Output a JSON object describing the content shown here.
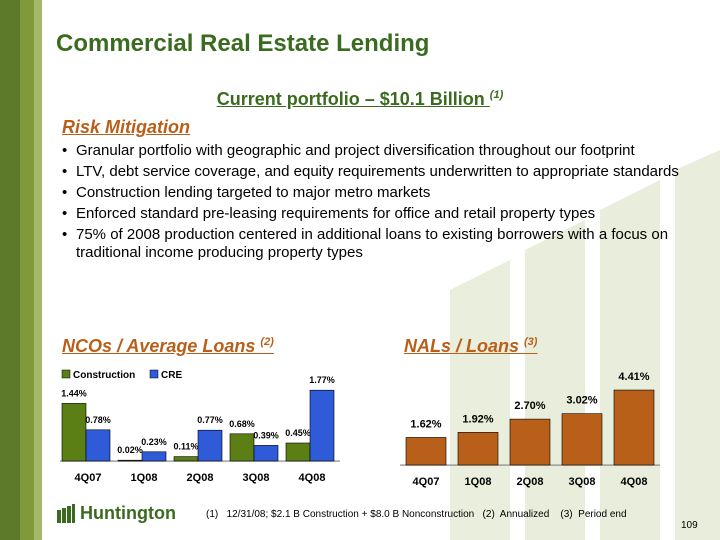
{
  "title": "Commercial Real Estate Lending",
  "subtitle": {
    "text": "Current portfolio – $10.1 Billion ",
    "note": "(1)"
  },
  "risk": {
    "heading": "Risk Mitigation",
    "bullets": [
      "Granular portfolio with geographic and project diversification throughout our footprint",
      "LTV, debt service coverage, and equity requirements underwritten to appropriate standards",
      "Construction lending targeted to major metro markets",
      "Enforced standard pre-leasing requirements for office and retail property types",
      "75% of 2008 production centered in additional loans to existing borrowers with a focus on traditional income producing property types"
    ]
  },
  "nco_heading": {
    "text": "NCOs / Average Loans ",
    "note": "(2)"
  },
  "nal_heading": {
    "text": "NALs / Loans ",
    "note": "(3)"
  },
  "chart_data": [
    {
      "type": "bar",
      "categories": [
        "4Q07",
        "1Q08",
        "2Q08",
        "3Q08",
        "4Q08"
      ],
      "series": [
        {
          "name": "Construction",
          "values": [
            1.44,
            0.02,
            0.11,
            0.68,
            0.45
          ],
          "labels": [
            "1.44%",
            "0.02%",
            "0.11%",
            "0.68%",
            "0.45%"
          ],
          "color": "#5b7f14"
        },
        {
          "name": "CRE",
          "values": [
            0.78,
            0.23,
            0.77,
            0.39,
            1.77
          ],
          "labels": [
            "0.78%",
            "0.23%",
            "0.77%",
            "0.39%",
            "1.77%"
          ],
          "color": "#2f5bd8"
        }
      ],
      "legend": "top-left",
      "grid": false
    },
    {
      "type": "bar",
      "categories": [
        "4Q07",
        "1Q08",
        "2Q08",
        "3Q08",
        "4Q08"
      ],
      "series": [
        {
          "values": [
            1.62,
            1.92,
            2.7,
            3.02,
            4.41
          ],
          "labels": [
            "1.62%",
            "1.92%",
            "2.70%",
            "3.02%",
            "4.41%"
          ],
          "color": "#b8601a"
        }
      ],
      "grid": false
    }
  ],
  "logo": {
    "name": "Huntington"
  },
  "footnote": "(1)   12/31/08; $2.1 B Construction + $8.0 B Nonconstruction   (2)  Annualized    (3)  Period end",
  "page_number": "109"
}
